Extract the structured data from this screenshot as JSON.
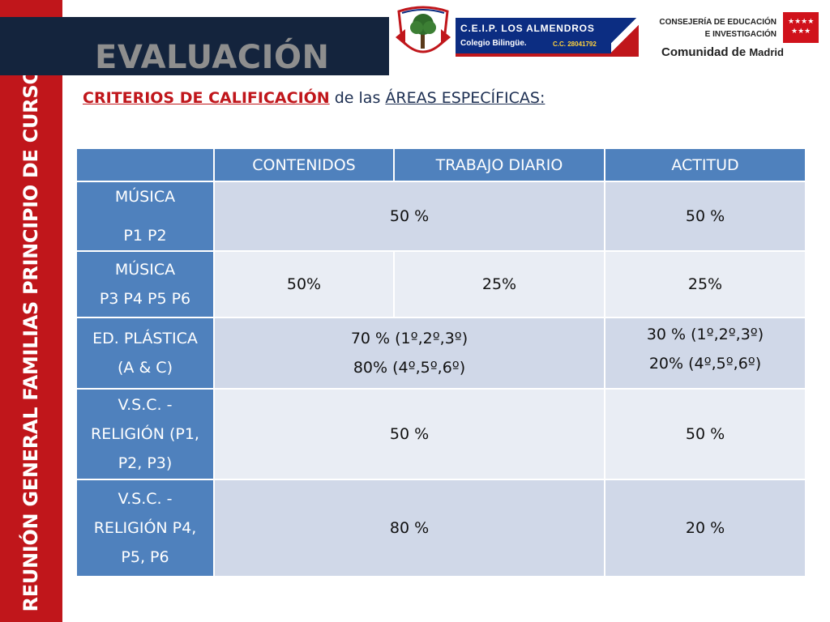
{
  "header": {
    "title": "EVALUACIÓN",
    "side_banner": "REUNIÓN GENERAL FAMILIAS PRINCIPIO DE CURSO"
  },
  "school_logo": {
    "name": "C.E.I.P. LOS ALMENDROS",
    "subtitle": "Colegio Bilingüe.",
    "code": "C.C. 28041792"
  },
  "region_logo": {
    "line1": "CONSEJERÍA DE EDUCACIÓN",
    "line2": "E INVESTIGACIÓN",
    "community": "Comunidad de",
    "region": "Madrid"
  },
  "subtitle": {
    "criteria": "CRITERIOS DE CALIFICACIÓN",
    "connector": "de las",
    "areas": "ÁREAS ESPECÍFICAS:"
  },
  "table": {
    "headers": [
      "",
      "CONTENIDOS",
      "TRABAJO DIARIO",
      "ACTITUD"
    ],
    "rows": [
      {
        "area": [
          "MÚSICA",
          "P1 P2"
        ],
        "combined": "50 %",
        "actitud": "50 %"
      },
      {
        "area": [
          "MÚSICA",
          "P3 P4 P5 P6"
        ],
        "contenidos": "50%",
        "trabajo": "25%",
        "actitud": "25%"
      },
      {
        "area": [
          "ED. PLÁSTICA",
          "(A & C)"
        ],
        "combined": [
          "70 % (1º,2º,3º)",
          "80% (4º,5º,6º)"
        ],
        "actitud": [
          "30 % (1º,2º,3º)",
          "20% (4º,5º,6º)"
        ]
      },
      {
        "area": [
          "V.S.C. -",
          "RELIGIÓN (P1,",
          "P2, P3)"
        ],
        "combined": "50 %",
        "actitud": "50 %"
      },
      {
        "area": [
          "V.S.C. -",
          "RELIGIÓN P4,",
          "P5, P6"
        ],
        "combined": "80 %",
        "actitud": "20 %"
      }
    ]
  },
  "colors": {
    "accent_red": "#c0161b",
    "navy": "#14243d",
    "header_blue": "#4f81bd",
    "row_dark": "#d0d8e8",
    "row_light": "#e9edf4"
  }
}
